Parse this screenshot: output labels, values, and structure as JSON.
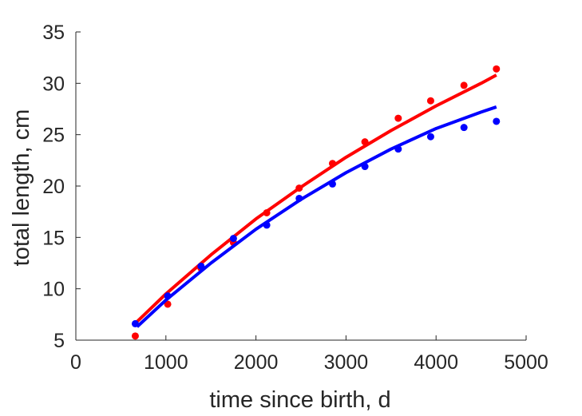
{
  "chart_data": {
    "type": "scatter",
    "title": "",
    "xlabel": "time since birth, d",
    "ylabel": "total length, cm",
    "xlim": [
      0,
      5000
    ],
    "ylim": [
      5,
      35
    ],
    "xticks": [
      0,
      1000,
      2000,
      3000,
      4000,
      5000
    ],
    "yticks": [
      5,
      10,
      15,
      20,
      25,
      30,
      35
    ],
    "grid": false,
    "legend": "none",
    "series": [
      {
        "color": "#ff0000",
        "points": {
          "x": [
            660,
            1020,
            1390,
            1750,
            2120,
            2480,
            2850,
            3210,
            3580,
            3940,
            4310,
            4670
          ],
          "y": [
            5.4,
            8.5,
            12.0,
            14.5,
            17.4,
            19.8,
            22.2,
            24.3,
            26.6,
            28.3,
            29.8,
            31.4
          ]
        },
        "fit": {
          "x": [
            680,
            1000,
            1500,
            2000,
            2500,
            3000,
            3500,
            4000,
            4500,
            4670
          ],
          "y": [
            6.8,
            9.5,
            13.3,
            16.8,
            19.9,
            22.8,
            25.4,
            27.8,
            30.0,
            30.8
          ]
        }
      },
      {
        "color": "#0000ff",
        "points": {
          "x": [
            660,
            1020,
            1390,
            1750,
            2120,
            2480,
            2850,
            3210,
            3580,
            3940,
            4310,
            4670
          ],
          "y": [
            6.6,
            9.3,
            12.2,
            14.9,
            16.2,
            18.8,
            20.2,
            21.9,
            23.6,
            24.8,
            25.7,
            26.3
          ]
        },
        "fit": {
          "x": [
            680,
            1000,
            1500,
            2000,
            2500,
            3000,
            3500,
            4000,
            4500,
            4670
          ],
          "y": [
            6.3,
            8.9,
            12.5,
            15.8,
            18.7,
            21.3,
            23.6,
            25.6,
            27.2,
            27.7
          ]
        }
      }
    ]
  }
}
